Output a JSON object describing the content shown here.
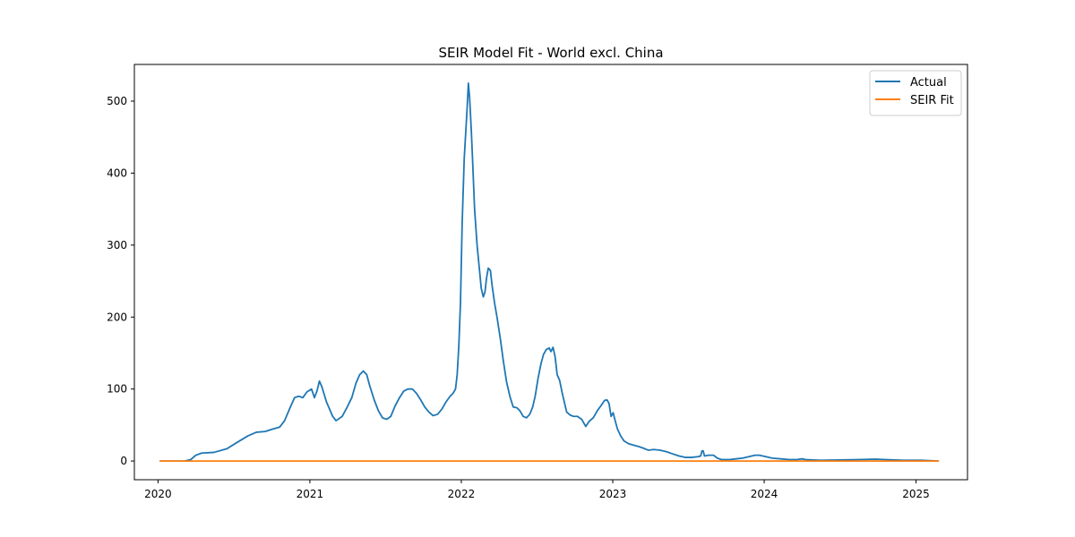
{
  "chart_data": {
    "type": "line",
    "title": "SEIR Model Fit - World excl. China",
    "xlabel": "",
    "ylabel": "",
    "x_axis_type": "date",
    "xlim": [
      "2019-11-05",
      "2025-05-05"
    ],
    "ylim": [
      -26,
      551
    ],
    "x_ticks": [
      "2020",
      "2021",
      "2022",
      "2023",
      "2024",
      "2025"
    ],
    "y_ticks": [
      0,
      100,
      200,
      300,
      400,
      500
    ],
    "grid": false,
    "legend_position": "top-right",
    "series": [
      {
        "name": "Actual",
        "color": "#1f77b4",
        "points": [
          [
            "2020-01-05",
            0
          ],
          [
            "2020-03-05",
            0
          ],
          [
            "2020-03-20",
            2
          ],
          [
            "2020-04-01",
            8
          ],
          [
            "2020-04-15",
            11
          ],
          [
            "2020-05-15",
            12
          ],
          [
            "2020-06-15",
            17
          ],
          [
            "2020-07-10",
            26
          ],
          [
            "2020-08-05",
            35
          ],
          [
            "2020-08-25",
            40
          ],
          [
            "2020-09-15",
            41
          ],
          [
            "2020-10-01",
            44
          ],
          [
            "2020-10-20",
            47
          ],
          [
            "2020-11-01",
            56
          ],
          [
            "2020-11-15",
            75
          ],
          [
            "2020-11-25",
            88
          ],
          [
            "2020-12-05",
            90
          ],
          [
            "2020-12-15",
            88
          ],
          [
            "2020-12-25",
            96
          ],
          [
            "2021-01-05",
            100
          ],
          [
            "2021-01-12",
            88
          ],
          [
            "2021-01-18",
            97
          ],
          [
            "2021-01-24",
            111
          ],
          [
            "2021-01-30",
            103
          ],
          [
            "2021-02-10",
            82
          ],
          [
            "2021-02-25",
            62
          ],
          [
            "2021-03-05",
            56
          ],
          [
            "2021-03-20",
            62
          ],
          [
            "2021-04-01",
            75
          ],
          [
            "2021-04-12",
            88
          ],
          [
            "2021-04-22",
            108
          ],
          [
            "2021-05-01",
            120
          ],
          [
            "2021-05-10",
            125
          ],
          [
            "2021-05-18",
            120
          ],
          [
            "2021-05-25",
            105
          ],
          [
            "2021-06-05",
            85
          ],
          [
            "2021-06-15",
            70
          ],
          [
            "2021-06-25",
            60
          ],
          [
            "2021-07-05",
            58
          ],
          [
            "2021-07-15",
            62
          ],
          [
            "2021-07-25",
            76
          ],
          [
            "2021-08-05",
            88
          ],
          [
            "2021-08-15",
            97
          ],
          [
            "2021-08-25",
            100
          ],
          [
            "2021-09-05",
            100
          ],
          [
            "2021-09-15",
            94
          ],
          [
            "2021-09-25",
            85
          ],
          [
            "2021-10-05",
            75
          ],
          [
            "2021-10-15",
            68
          ],
          [
            "2021-10-25",
            63
          ],
          [
            "2021-11-05",
            65
          ],
          [
            "2021-11-15",
            72
          ],
          [
            "2021-11-25",
            82
          ],
          [
            "2021-12-05",
            90
          ],
          [
            "2021-12-12",
            94
          ],
          [
            "2021-12-18",
            100
          ],
          [
            "2021-12-22",
            120
          ],
          [
            "2021-12-26",
            160
          ],
          [
            "2021-12-30",
            220
          ],
          [
            "2022-01-03",
            330
          ],
          [
            "2022-01-08",
            420
          ],
          [
            "2022-01-12",
            460
          ],
          [
            "2022-01-15",
            490
          ],
          [
            "2022-01-18",
            525
          ],
          [
            "2022-01-21",
            505
          ],
          [
            "2022-01-25",
            460
          ],
          [
            "2022-01-28",
            420
          ],
          [
            "2022-02-02",
            350
          ],
          [
            "2022-02-08",
            300
          ],
          [
            "2022-02-13",
            270
          ],
          [
            "2022-02-18",
            240
          ],
          [
            "2022-02-23",
            228
          ],
          [
            "2022-02-27",
            235
          ],
          [
            "2022-03-03",
            255
          ],
          [
            "2022-03-07",
            268
          ],
          [
            "2022-03-12",
            265
          ],
          [
            "2022-03-16",
            245
          ],
          [
            "2022-03-22",
            220
          ],
          [
            "2022-03-28",
            200
          ],
          [
            "2022-04-05",
            170
          ],
          [
            "2022-04-12",
            140
          ],
          [
            "2022-04-20",
            110
          ],
          [
            "2022-04-28",
            90
          ],
          [
            "2022-05-06",
            75
          ],
          [
            "2022-05-15",
            74
          ],
          [
            "2022-05-22",
            70
          ],
          [
            "2022-05-30",
            62
          ],
          [
            "2022-06-07",
            60
          ],
          [
            "2022-06-15",
            65
          ],
          [
            "2022-06-22",
            75
          ],
          [
            "2022-06-28",
            90
          ],
          [
            "2022-07-05",
            115
          ],
          [
            "2022-07-12",
            135
          ],
          [
            "2022-07-18",
            148
          ],
          [
            "2022-07-25",
            155
          ],
          [
            "2022-08-01",
            157
          ],
          [
            "2022-08-05",
            152
          ],
          [
            "2022-08-10",
            158
          ],
          [
            "2022-08-15",
            145
          ],
          [
            "2022-08-20",
            120
          ],
          [
            "2022-08-26",
            112
          ],
          [
            "2022-09-01",
            95
          ],
          [
            "2022-09-07",
            80
          ],
          [
            "2022-09-12",
            68
          ],
          [
            "2022-09-20",
            64
          ],
          [
            "2022-09-28",
            62
          ],
          [
            "2022-10-08",
            62
          ],
          [
            "2022-10-18",
            58
          ],
          [
            "2022-10-28",
            48
          ],
          [
            "2022-11-05",
            55
          ],
          [
            "2022-11-15",
            60
          ],
          [
            "2022-11-25",
            70
          ],
          [
            "2022-12-05",
            78
          ],
          [
            "2022-12-12",
            84
          ],
          [
            "2022-12-18",
            85
          ],
          [
            "2022-12-23",
            80
          ],
          [
            "2022-12-28",
            62
          ],
          [
            "2023-01-02",
            67
          ],
          [
            "2023-01-05",
            60
          ],
          [
            "2023-01-12",
            45
          ],
          [
            "2023-01-20",
            35
          ],
          [
            "2023-01-28",
            28
          ],
          [
            "2023-02-08",
            24
          ],
          [
            "2023-02-20",
            22
          ],
          [
            "2023-03-05",
            20
          ],
          [
            "2023-03-15",
            18
          ],
          [
            "2023-03-28",
            15
          ],
          [
            "2023-04-10",
            16
          ],
          [
            "2023-04-25",
            15
          ],
          [
            "2023-05-10",
            13
          ],
          [
            "2023-05-25",
            10
          ],
          [
            "2023-06-10",
            7
          ],
          [
            "2023-06-25",
            5
          ],
          [
            "2023-07-10",
            5
          ],
          [
            "2023-07-25",
            6
          ],
          [
            "2023-08-01",
            7
          ],
          [
            "2023-08-04",
            14
          ],
          [
            "2023-08-07",
            14
          ],
          [
            "2023-08-10",
            7
          ],
          [
            "2023-08-20",
            8
          ],
          [
            "2023-09-01",
            8
          ],
          [
            "2023-09-10",
            4
          ],
          [
            "2023-09-20",
            2
          ],
          [
            "2023-10-10",
            2
          ],
          [
            "2023-10-25",
            3
          ],
          [
            "2023-11-10",
            4
          ],
          [
            "2023-11-25",
            6
          ],
          [
            "2023-12-10",
            8
          ],
          [
            "2023-12-20",
            8
          ],
          [
            "2024-01-05",
            6
          ],
          [
            "2024-01-20",
            4
          ],
          [
            "2024-02-10",
            3
          ],
          [
            "2024-03-01",
            2
          ],
          [
            "2024-03-20",
            2
          ],
          [
            "2024-04-01",
            3
          ],
          [
            "2024-04-10",
            2
          ],
          [
            "2024-05-15",
            1
          ],
          [
            "2024-07-01",
            1.5
          ],
          [
            "2024-08-15",
            2
          ],
          [
            "2024-09-25",
            2.5
          ],
          [
            "2024-10-20",
            2
          ],
          [
            "2024-12-01",
            1
          ],
          [
            "2025-01-15",
            1
          ],
          [
            "2025-02-25",
            0
          ]
        ]
      },
      {
        "name": "SEIR Fit",
        "color": "#ff7f0e",
        "points": [
          [
            "2020-01-05",
            0
          ],
          [
            "2025-02-25",
            0
          ]
        ]
      }
    ]
  }
}
